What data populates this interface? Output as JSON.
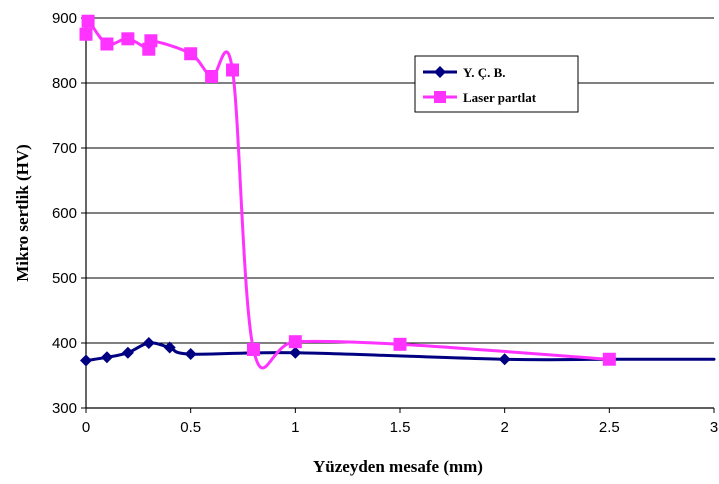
{
  "chart_data": {
    "type": "line",
    "title": "",
    "xlabel": "Yüzeyden mesafe (mm)",
    "ylabel": "Mikro sertlik  (HV)",
    "xlim": [
      0,
      3
    ],
    "ylim": [
      300,
      900
    ],
    "xticks": [
      "0",
      "0.5",
      "1",
      "1.5",
      "2",
      "2.5",
      "3"
    ],
    "xtick_values": [
      0,
      0.5,
      1,
      1.5,
      2,
      2.5,
      3
    ],
    "yticks": [
      "300",
      "400",
      "500",
      "600",
      "700",
      "800",
      "900"
    ],
    "ytick_values": [
      300,
      400,
      500,
      600,
      700,
      800,
      900
    ],
    "grid": "horizontal",
    "legend_position": "top-right",
    "smooth": true,
    "series": [
      {
        "name": "Y. Ç. B.",
        "color": "#000080",
        "marker": "diamond",
        "x": [
          0,
          0.1,
          0.2,
          0.3,
          0.4,
          0.5,
          1.0,
          2.0,
          2.5,
          3.0
        ],
        "y": [
          373,
          378,
          385,
          400,
          393,
          383,
          385,
          375,
          375,
          375
        ]
      },
      {
        "name": "Laser partlat",
        "color": "#FF33FF",
        "marker": "square",
        "x": [
          0,
          0.01,
          0.1,
          0.2,
          0.3,
          0.31,
          0.5,
          0.6,
          0.7,
          0.8,
          1.0,
          1.5,
          2.5
        ],
        "y": [
          875,
          895,
          860,
          868,
          852,
          865,
          845,
          810,
          820,
          390,
          402,
          398,
          375
        ]
      }
    ]
  }
}
